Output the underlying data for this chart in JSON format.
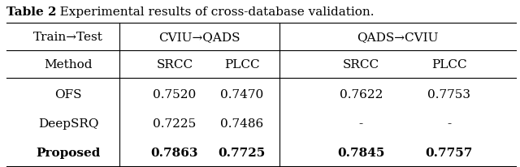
{
  "title": "Table 2. Experimental results of cross-database validation.",
  "title_bold_part": "Table 2",
  "col_groups": [
    "CVIU→QADS",
    "QADS→CVIU"
  ],
  "sub_cols": [
    "SRCC",
    "PLCC",
    "SRCC",
    "PLCC"
  ],
  "row_header": "Train→Test",
  "method_header": "Method",
  "rows": [
    {
      "method": "OFS",
      "vals": [
        "0.7520",
        "0.7470",
        "0.7622",
        "0.7753"
      ],
      "bold": [
        false,
        false,
        false,
        false
      ]
    },
    {
      "method": "DeepSRQ",
      "vals": [
        "0.7225",
        "0.7486",
        "-",
        "-"
      ],
      "bold": [
        false,
        false,
        false,
        false
      ]
    },
    {
      "method": "Proposed",
      "vals": [
        "0.7863",
        "0.7725",
        "0.7845",
        "0.7757"
      ],
      "bold": [
        true,
        true,
        true,
        true
      ]
    }
  ],
  "bg_color": "#ffffff",
  "text_color": "#000000",
  "font_size": 11,
  "title_font_size": 11
}
